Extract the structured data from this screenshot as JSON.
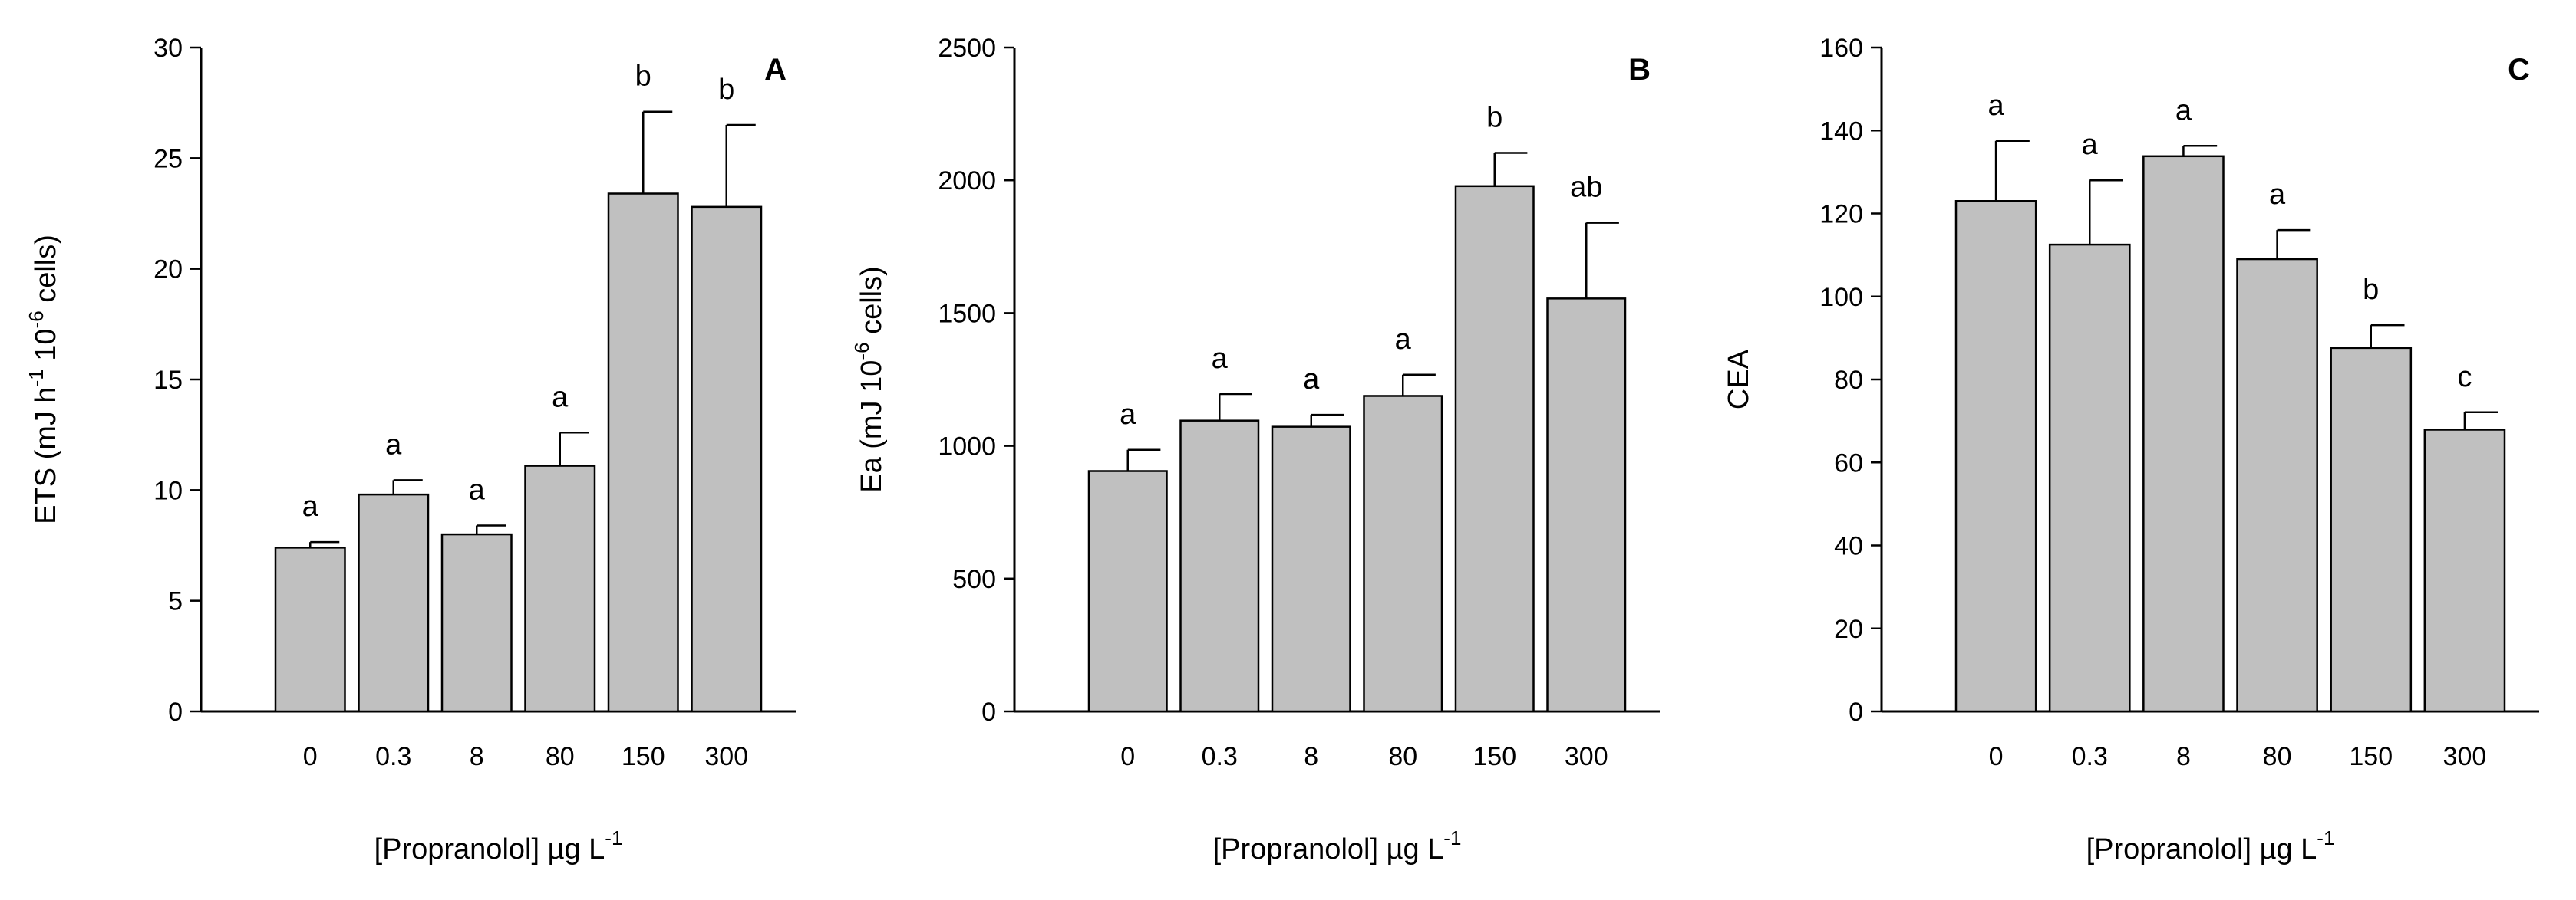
{
  "chart_data": [
    {
      "type": "bar",
      "panel_label": "A",
      "categories": [
        "0",
        "0.3",
        "8",
        "80",
        "150",
        "300"
      ],
      "values": [
        7.4,
        9.8,
        8.0,
        11.1,
        23.4,
        22.8
      ],
      "errors": [
        0.25,
        0.65,
        0.4,
        1.5,
        3.7,
        3.7
      ],
      "letters": [
        "a",
        "a",
        "a",
        "a",
        "b",
        "b"
      ],
      "ylabel": {
        "pre": "ETS (mJ h",
        "sup1": "-1",
        "mid": " 10",
        "sup2": "-6",
        "post": " cells)"
      },
      "xlabel": {
        "main": "[Propranolol] µg L",
        "sup": "-1"
      },
      "ylim": [
        0,
        30
      ],
      "yticks": [
        0,
        5,
        10,
        15,
        20,
        25,
        30
      ],
      "grid": false,
      "legend": "none"
    },
    {
      "type": "bar",
      "panel_label": "B",
      "categories": [
        "0",
        "0.3",
        "8",
        "80",
        "150",
        "300"
      ],
      "values": [
        905,
        1095,
        1072,
        1188,
        1978,
        1555
      ],
      "errors": [
        80,
        100,
        45,
        80,
        125,
        285
      ],
      "letters": [
        "a",
        "a",
        "a",
        "a",
        "b",
        "ab"
      ],
      "ylabel": {
        "pre": "Ea (mJ 10",
        "sup1": "-6",
        "mid": " cells)",
        "sup2": "",
        "post": ""
      },
      "xlabel": {
        "main": "[Propranolol] µg L",
        "sup": "-1"
      },
      "ylim": [
        0,
        2500
      ],
      "yticks": [
        0,
        500,
        1000,
        1500,
        2000,
        2500
      ],
      "grid": false,
      "legend": "none"
    },
    {
      "type": "bar",
      "panel_label": "C",
      "categories": [
        "0",
        "0.3",
        "8",
        "80",
        "150",
        "300"
      ],
      "values": [
        123,
        112.5,
        133.8,
        109,
        87.6,
        67.9
      ],
      "errors": [
        14.5,
        15.5,
        2.5,
        7,
        5.5,
        4.2
      ],
      "letters": [
        "a",
        "a",
        "a",
        "a",
        "b",
        "c"
      ],
      "ylabel": {
        "pre": "CEA",
        "sup1": "",
        "mid": "",
        "sup2": "",
        "post": ""
      },
      "xlabel": {
        "main": "[Propranolol] µg L",
        "sup": "-1"
      },
      "ylim": [
        0,
        160
      ],
      "yticks": [
        0,
        20,
        40,
        60,
        80,
        100,
        120,
        140,
        160
      ],
      "grid": false,
      "legend": "none"
    }
  ]
}
